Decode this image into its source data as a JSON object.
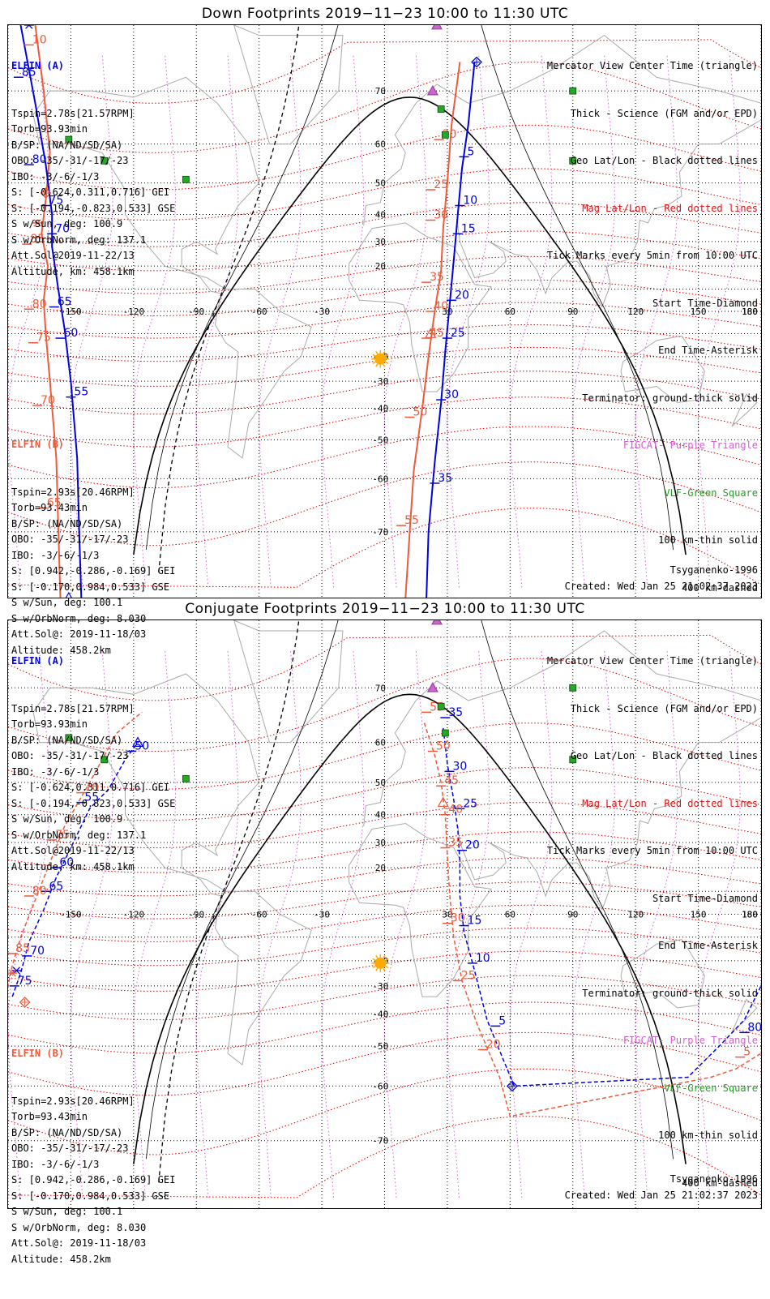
{
  "panels": [
    {
      "id": "down",
      "title": "Down Footprints 2019−11−23 10:00 to 11:30 UTC",
      "elfin_a": {
        "name": "ELFIN (A)",
        "lines": [
          "Tspin=2.78s[21.57RPM]",
          "Torb=93.93min",
          "B/SP: (NA/ND/SD/SA)",
          "OBO: -35/-31/-17/-23",
          "IBO: -3/-6/-1/3",
          "S: [-0.624,0.311,0.716] GEI",
          "S: [-0.194,-0.823,0.533] GSE",
          "S w/Sun, deg: 100.9",
          "S w/OrbNorm, deg: 137.1",
          "Att.Sol@2019-11-22/13",
          "Altitude, km: 458.1km"
        ]
      },
      "elfin_b": {
        "name": "ELFIN (B)",
        "lines": [
          "Tspin=2.93s[20.46RPM]",
          "Torb=93.43min",
          "B/SP: (NA/ND/SD/SA)",
          "OBO: -35/-31/-17/-23",
          "IBO: -3/-6/-1/3",
          "S: [0.942,-0.286,-0.169] GEI",
          "S: [-0.170,0.984,0.533] GSE",
          "S w/Sun, deg: 100.1",
          "S w/OrbNorm, deg: 8.030",
          "Att.Sol@: 2019-11-18/03",
          "Altitude: 458.2km"
        ]
      }
    },
    {
      "id": "conjugate",
      "title": "Conjugate Footprints 2019−11−23 10:00 to 11:30 UTC",
      "elfin_a": {
        "name": "ELFIN (A)",
        "lines": [
          "Tspin=2.78s[21.57RPM]",
          "Torb=93.93min",
          "B/SP: (NA/ND/SD/SA)",
          "OBO: -35/-31/-17/-23",
          "IBO: -3/-6/-1/3",
          "S: [-0.624,0.311,0.716] GEI",
          "S: [-0.194,-0.823,0.533] GSE",
          "S w/Sun, deg: 100.9",
          "S w/OrbNorm, deg: 137.1",
          "Att.Sol@2019-11-22/13",
          "Altitude, km: 458.1km"
        ]
      },
      "elfin_b": {
        "name": "ELFIN (B)",
        "lines": [
          "Tspin=2.93s[20.46RPM]",
          "Torb=93.43min",
          "B/SP: (NA/ND/SD/SA)",
          "OBO: -35/-31/-17/-23",
          "IBO: -3/-6/-1/3",
          "S: [0.942,-0.286,-0.169] GEI",
          "S: [-0.170,0.984,0.533] GSE",
          "S w/Sun, deg: 100.1",
          "S w/OrbNorm, deg: 8.030",
          "Att.Sol@: 2019-11-18/03",
          "Altitude: 458.2km"
        ]
      }
    }
  ],
  "legend": {
    "l1": "Mercator View Center Time (triangle)",
    "l2": "Thick - Science (FGM and/or EPD)",
    "l3": "Geo Lat/Lon - Black dotted lines",
    "l4": "Mag Lat/Lon - Red dotted lines",
    "l5": "Tick Marks every 5min from 10:00 UTC",
    "l6": "Start Time-Diamond",
    "l7": "End Time-Asterisk",
    "l8": "Terminator: ground-thick solid",
    "l9": "FIGCAT- Purple Triangle",
    "l10": "VLF-Green Square",
    "l11": "100 km-thin solid",
    "l12": "400 km-dashed"
  },
  "model": "Tsyganenko-1996",
  "created": "Created: Wed Jan 25 21:02:37 2023",
  "axes": {
    "lon_ticks": [
      -180,
      -150,
      -120,
      -90,
      -60,
      -30,
      0,
      30,
      60,
      90,
      120,
      150,
      180
    ],
    "lat_ticks": [
      70,
      60,
      50,
      40,
      30,
      20,
      10,
      0,
      -10,
      -20,
      -30,
      -40,
      -50,
      -60,
      -70
    ],
    "lon_labels_shown": [
      "180",
      "-150",
      "-120",
      "-90",
      "-60",
      "-30",
      "30",
      "60",
      "90",
      "120",
      "150",
      "180"
    ],
    "lat_labels_shown": [
      "70",
      "60",
      "50",
      "40",
      "30",
      "20",
      "-20",
      "-30",
      "-40",
      "-50",
      "-60",
      "-70"
    ],
    "lon_range": [
      -180,
      180
    ],
    "lat_range": [
      -78,
      78
    ],
    "projection": "mercator"
  },
  "colors": {
    "elfin_a": "#0000e0",
    "elfin_b": "#ee5a3a",
    "geo_grid": "#000000",
    "mag_grid": "#dd0000",
    "figcat": "#cc66cc",
    "vlf": "#22aa22",
    "sun": "#ffaa00",
    "coast": "#aaaaaa"
  },
  "tracks": {
    "down": {
      "a": [
        [
          -174,
          78
        ],
        [
          -167,
          68
        ],
        [
          -162,
          55
        ],
        [
          -159,
          40
        ],
        [
          -159,
          28
        ],
        [
          -156,
          10
        ],
        [
          -153,
          -8
        ],
        [
          -150,
          -30
        ],
        [
          -147,
          -55
        ],
        [
          -146,
          -70
        ],
        [
          -145,
          -78
        ],
        [
          43,
          74
        ],
        [
          40,
          64
        ],
        [
          37,
          54
        ],
        [
          35,
          40
        ],
        [
          33,
          22
        ],
        [
          31,
          2
        ],
        [
          29,
          -18
        ],
        [
          27,
          -38
        ],
        [
          24,
          -56
        ],
        [
          21,
          -70
        ],
        [
          20,
          -78
        ]
      ],
      "a_ticks": [
        {
          "label": "85",
          "lon": -175,
          "lat": 72
        },
        {
          "label": "80",
          "lon": -170,
          "lat": 55
        },
        {
          "label": "75",
          "lon": -162,
          "lat": 43
        },
        {
          "label": "70",
          "lon": -159,
          "lat": 33
        },
        {
          "label": "65",
          "lon": -158,
          "lat": 2
        },
        {
          "label": "60",
          "lon": -155,
          "lat": -12
        },
        {
          "label": "55",
          "lon": -150,
          "lat": -36
        },
        {
          "label": "5",
          "lon": 38,
          "lat": 57
        },
        {
          "label": "10",
          "lon": 36,
          "lat": 43
        },
        {
          "label": "15",
          "lon": 35,
          "lat": 33
        },
        {
          "label": "20",
          "lon": 32,
          "lat": 5
        },
        {
          "label": "25",
          "lon": 30,
          "lat": -12
        },
        {
          "label": "30",
          "lon": 27,
          "lat": -37
        },
        {
          "label": "35",
          "lon": 24,
          "lat": -61
        }
      ],
      "b": [
        [
          -167,
          78
        ],
        [
          -163,
          70
        ],
        [
          -160,
          58
        ],
        [
          -162,
          45
        ],
        [
          -164,
          33
        ],
        [
          -161,
          20
        ],
        [
          -163,
          5
        ],
        [
          -162,
          -10
        ],
        [
          -160,
          -30
        ],
        [
          -157,
          -55
        ],
        [
          -155,
          -78
        ],
        [
          36,
          74
        ],
        [
          32,
          64
        ],
        [
          30,
          50
        ],
        [
          28,
          35
        ],
        [
          27,
          18
        ],
        [
          24,
          0
        ],
        [
          21,
          -20
        ],
        [
          18,
          -40
        ],
        [
          14,
          -58
        ],
        [
          12,
          -70
        ],
        [
          10,
          -78
        ]
      ],
      "b_ticks": [
        {
          "label": "10",
          "lon": -170,
          "lat": 76
        },
        {
          "label": "85",
          "lon": -171,
          "lat": 29
        },
        {
          "label": "80",
          "lon": -170,
          "lat": 1
        },
        {
          "label": "75",
          "lon": -168,
          "lat": -14
        },
        {
          "label": "70",
          "lon": -166,
          "lat": -39
        },
        {
          "label": "65",
          "lon": -163,
          "lat": -66
        },
        {
          "label": "20",
          "lon": 26,
          "lat": 61
        },
        {
          "label": "25",
          "lon": 22,
          "lat": 48
        },
        {
          "label": "30",
          "lon": 22,
          "lat": 38
        },
        {
          "label": "35",
          "lon": 20,
          "lat": 13
        },
        {
          "label": "40",
          "lon": 22,
          "lat": 0
        },
        {
          "label": "45",
          "lon": 20,
          "lat": -12
        },
        {
          "label": "50",
          "lon": 12,
          "lat": -43
        },
        {
          "label": "55",
          "lon": 8,
          "lat": -69
        }
      ],
      "a_start": [
        44,
        74
      ],
      "a_end": [
        -170,
        78
      ],
      "b_start": [
        -162,
        47
      ],
      "b_end": [
        -166,
        37
      ],
      "b_tri": [
        22,
        -10
      ],
      "a_tri": [
        -151,
        -78
      ]
    },
    "conjugate": {
      "a": [
        [
          -178,
          -34
        ],
        [
          -174,
          -25
        ],
        [
          -170,
          -12
        ],
        [
          -163,
          2
        ],
        [
          -157,
          16
        ],
        [
          -150,
          28
        ],
        [
          -141,
          42
        ],
        [
          -132,
          48
        ],
        [
          -124,
          56
        ],
        [
          -118,
          60
        ],
        [
          28,
          63
        ],
        [
          30,
          55
        ],
        [
          33,
          45
        ],
        [
          35,
          35
        ],
        [
          36,
          22
        ],
        [
          36,
          8
        ],
        [
          38,
          -8
        ],
        [
          43,
          -24
        ],
        [
          49,
          -42
        ],
        [
          57,
          -54
        ],
        [
          62,
          -60
        ],
        [
          145,
          -58
        ],
        [
          160,
          -50
        ],
        [
          172,
          -42
        ],
        [
          180,
          -30
        ]
      ],
      "a_ticks": [
        {
          "label": "75",
          "lon": -177,
          "lat": -30
        },
        {
          "label": "70",
          "lon": -171,
          "lat": -18
        },
        {
          "label": "65",
          "lon": -162,
          "lat": 10
        },
        {
          "label": "60",
          "lon": -157,
          "lat": 20
        },
        {
          "label": "55",
          "lon": -145,
          "lat": 44
        },
        {
          "label": "50",
          "lon": -121,
          "lat": 58
        },
        {
          "label": "35",
          "lon": 29,
          "lat": 65
        },
        {
          "label": "30",
          "lon": 31,
          "lat": 53
        },
        {
          "label": "25",
          "lon": 36,
          "lat": 42
        },
        {
          "label": "20",
          "lon": 37,
          "lat": 27
        },
        {
          "label": "15",
          "lon": 38,
          "lat": -5
        },
        {
          "label": "10",
          "lon": 42,
          "lat": -21
        },
        {
          "label": "5",
          "lon": 53,
          "lat": -44
        },
        {
          "label": "80",
          "lon": 172,
          "lat": -46
        }
      ],
      "b": [
        [
          -183,
          -40
        ],
        [
          -178,
          -22
        ],
        [
          -174,
          -10
        ],
        [
          -168,
          4
        ],
        [
          -161,
          20
        ],
        [
          -153,
          36
        ],
        [
          -141,
          50
        ],
        [
          -128,
          62
        ],
        [
          -116,
          66
        ],
        [
          19,
          64
        ],
        [
          24,
          57
        ],
        [
          27,
          50
        ],
        [
          29,
          40
        ],
        [
          30,
          25
        ],
        [
          31,
          10
        ],
        [
          33,
          -10
        ],
        [
          37,
          -28
        ],
        [
          44,
          -43
        ],
        [
          55,
          -58
        ],
        [
          60,
          -66
        ],
        [
          156,
          -58
        ],
        [
          168,
          -56
        ],
        [
          180,
          -52
        ]
      ],
      "b_ticks": [
        {
          "label": "85",
          "lon": -178,
          "lat": -17
        },
        {
          "label": "80",
          "lon": -170,
          "lat": 8
        },
        {
          "label": "75",
          "lon": -159,
          "lat": 31
        },
        {
          "label": "70",
          "lon": -145,
          "lat": 47
        },
        {
          "label": "55",
          "lon": 20,
          "lat": 66
        },
        {
          "label": "50",
          "lon": 23,
          "lat": 58
        },
        {
          "label": "45",
          "lon": 27,
          "lat": 49
        },
        {
          "label": "40",
          "lon": 29,
          "lat": 40
        },
        {
          "label": "35",
          "lon": 29,
          "lat": 28
        },
        {
          "label": "30",
          "lon": 30,
          "lat": -4
        },
        {
          "label": "25",
          "lon": 35,
          "lat": -28
        },
        {
          "label": "20",
          "lon": 47,
          "lat": -51
        },
        {
          "label": "5",
          "lon": 170,
          "lat": -53
        }
      ],
      "a_start": [
        61,
        -60
      ],
      "a_end": [
        -176,
        -24
      ],
      "b_start": [
        -172,
        -36
      ],
      "b_end": [
        -178,
        -25
      ],
      "b_tri": [
        28,
        44
      ],
      "a_tri": [
        -118,
        60
      ]
    }
  },
  "markers": {
    "figcat": [
      [
        25,
        78
      ],
      [
        23,
        70
      ]
    ],
    "vlf": [
      [
        27,
        67
      ],
      [
        29,
        62
      ],
      [
        -95,
        51
      ],
      [
        -151,
        61
      ],
      [
        -134,
        56
      ],
      [
        90,
        70
      ],
      [
        90,
        56
      ]
    ],
    "sun": [
      [
        -2,
        -21
      ]
    ]
  }
}
